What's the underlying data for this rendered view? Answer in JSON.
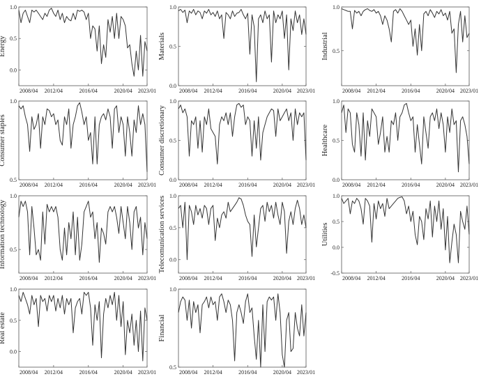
{
  "chart_data": [
    {
      "type": "line",
      "ylabel": "Energy",
      "ylim": [
        -0.25,
        1.0
      ],
      "yticks": [
        "1.0",
        "0.5",
        "0.0"
      ],
      "ytick_values": [
        1.0,
        0.5,
        0.0
      ],
      "xticks": [
        "2008/04",
        "2012/04",
        "2016/04",
        "2020/04",
        "2023/01"
      ],
      "x_start": "2008/04",
      "x_end": "2023/01",
      "x_step": "quarterly",
      "values": [
        0.95,
        0.75,
        0.9,
        0.95,
        0.85,
        0.75,
        0.95,
        0.92,
        0.95,
        0.9,
        0.85,
        0.8,
        0.9,
        0.85,
        0.95,
        0.98,
        0.9,
        0.85,
        0.95,
        0.8,
        0.9,
        0.75,
        0.85,
        0.8,
        0.78,
        0.9,
        0.8,
        0.95,
        0.93,
        0.95,
        0.92,
        0.8,
        0.9,
        0.5,
        0.7,
        0.65,
        0.3,
        0.7,
        0.1,
        0.4,
        0.2,
        0.8,
        0.6,
        0.85,
        0.5,
        0.9,
        0.5,
        0.85,
        0.8,
        0.7,
        0.35,
        0.4,
        0.1,
        -0.1,
        0.3,
        0.0,
        0.55,
        -0.1,
        0.45,
        0.3
      ]
    },
    {
      "type": "line",
      "ylabel": "Materials",
      "ylim": [
        0.0,
        1.0
      ],
      "yticks": [
        "1.0",
        "0.5",
        "0.0"
      ],
      "ytick_values": [
        1.0,
        0.5,
        0.0
      ],
      "xticks": [
        "2008/04",
        "2012/04",
        "2016/04",
        "2020/04",
        "2023/01"
      ],
      "x_start": "2008/04",
      "x_end": "2023/01",
      "x_step": "quarterly",
      "values": [
        0.95,
        0.97,
        0.93,
        0.96,
        0.8,
        0.95,
        0.92,
        0.97,
        0.9,
        0.95,
        0.93,
        0.85,
        0.95,
        0.92,
        0.97,
        0.9,
        0.93,
        0.88,
        0.95,
        0.85,
        0.9,
        0.6,
        0.93,
        0.9,
        0.85,
        0.95,
        0.88,
        0.92,
        0.93,
        0.97,
        0.9,
        0.85,
        0.92,
        0.4,
        0.9,
        0.75,
        0.05,
        0.85,
        0.9,
        0.8,
        0.95,
        0.85,
        0.9,
        0.3,
        0.95,
        0.8,
        0.9,
        0.85,
        0.95,
        0.6,
        0.9,
        0.2,
        0.85,
        0.7,
        0.95,
        0.8,
        0.9,
        0.65,
        0.85,
        0.65
      ]
    },
    {
      "type": "line",
      "ylabel": "Industrial",
      "ylim": [
        0.1,
        1.0
      ],
      "yticks": [
        "1.0",
        "0.5"
      ],
      "ytick_values": [
        1.0,
        0.5
      ],
      "xticks": [
        "2008/04",
        "2012/04",
        "2016/04",
        "2020/04",
        "2023/01"
      ],
      "x_start": "2008/04",
      "x_end": "2023/01",
      "x_step": "quarterly",
      "values": [
        0.98,
        0.97,
        0.96,
        0.95,
        0.95,
        0.75,
        0.96,
        0.93,
        0.95,
        0.9,
        0.95,
        0.97,
        0.98,
        0.96,
        0.95,
        0.97,
        0.93,
        0.95,
        0.9,
        0.8,
        0.9,
        0.85,
        0.75,
        0.6,
        0.95,
        0.97,
        0.93,
        0.98,
        0.95,
        0.9,
        0.85,
        0.8,
        0.85,
        0.55,
        0.75,
        0.45,
        0.8,
        0.5,
        0.92,
        0.95,
        0.9,
        0.97,
        0.93,
        0.88,
        0.95,
        0.92,
        0.97,
        0.9,
        0.93,
        0.85,
        0.95,
        0.7,
        0.75,
        0.25,
        0.8,
        0.95,
        0.6,
        0.9,
        0.65,
        0.7
      ]
    },
    {
      "type": "line",
      "ylabel": "Consumer staples",
      "ylim": [
        0.5,
        1.0
      ],
      "yticks": [
        "1.0",
        "0.5"
      ],
      "ytick_values": [
        1.0,
        0.5
      ],
      "xticks": [
        "2008/04",
        "2012/04",
        "2016/04",
        "2020/04",
        "2023/01"
      ],
      "x_start": "2008/04",
      "x_end": "2023/01",
      "x_step": "quarterly",
      "values": [
        0.97,
        0.95,
        0.97,
        0.9,
        0.85,
        0.68,
        0.9,
        0.82,
        0.85,
        0.92,
        0.7,
        0.9,
        0.85,
        0.95,
        0.94,
        0.9,
        0.92,
        0.85,
        0.88,
        0.75,
        0.72,
        0.9,
        0.85,
        0.95,
        0.7,
        0.85,
        0.9,
        0.97,
        0.99,
        0.93,
        0.85,
        0.9,
        0.75,
        0.8,
        0.6,
        0.9,
        0.6,
        0.85,
        0.9,
        0.92,
        0.88,
        0.95,
        0.9,
        0.7,
        0.95,
        0.97,
        0.8,
        0.9,
        0.85,
        0.65,
        0.9,
        0.8,
        0.65,
        0.88,
        0.8,
        0.97,
        0.85,
        0.92,
        0.85,
        0.55
      ]
    },
    {
      "type": "line",
      "ylabel": "Consumer discretionary",
      "ylim": [
        0.0,
        1.0
      ],
      "yticks": [
        "1.0",
        "0.5",
        "0.0"
      ],
      "ytick_values": [
        1.0,
        0.5,
        0.0
      ],
      "xticks": [
        "2008/04",
        "2012/04",
        "2016/04",
        "2020/04",
        "2023/01"
      ],
      "x_start": "2008/04",
      "x_end": "2023/01",
      "x_step": "quarterly",
      "values": [
        0.9,
        0.95,
        0.85,
        0.9,
        0.8,
        0.3,
        0.75,
        0.7,
        0.8,
        0.4,
        0.75,
        0.35,
        0.8,
        0.7,
        0.9,
        0.65,
        0.6,
        0.55,
        0.2,
        0.7,
        0.8,
        0.75,
        0.85,
        0.7,
        0.85,
        0.55,
        0.8,
        0.95,
        0.97,
        0.92,
        0.95,
        0.7,
        0.8,
        0.75,
        0.3,
        0.75,
        0.4,
        0.8,
        0.25,
        0.6,
        0.7,
        0.8,
        0.85,
        0.9,
        0.88,
        0.55,
        0.9,
        0.75,
        0.8,
        0.85,
        0.9,
        0.75,
        0.85,
        0.5,
        0.9,
        0.7,
        0.85,
        0.8,
        0.85,
        0.25
      ]
    },
    {
      "type": "line",
      "ylabel": "Healthcare",
      "ylim": [
        0.0,
        1.0
      ],
      "yticks": [
        "1.0",
        "0.5",
        "0.0"
      ],
      "ytick_values": [
        1.0,
        0.5,
        0.0
      ],
      "xticks": [
        "2008/04",
        "2012/04",
        "2016/04",
        "2020/04",
        "2023/01"
      ],
      "x_start": "2008/04",
      "x_end": "2023/01",
      "x_step": "quarterly",
      "values": [
        0.85,
        0.95,
        0.6,
        0.9,
        0.85,
        0.45,
        0.35,
        0.85,
        0.7,
        0.3,
        0.85,
        0.25,
        0.75,
        0.55,
        0.9,
        0.85,
        0.8,
        0.45,
        0.6,
        0.8,
        0.35,
        0.55,
        0.35,
        0.75,
        0.7,
        0.85,
        0.5,
        0.8,
        0.85,
        0.95,
        0.97,
        0.85,
        0.75,
        0.8,
        0.35,
        0.7,
        0.45,
        0.2,
        0.8,
        0.6,
        0.4,
        0.8,
        0.85,
        0.75,
        0.9,
        0.65,
        0.85,
        0.7,
        0.35,
        0.8,
        0.6,
        0.9,
        0.7,
        0.75,
        0.1,
        0.75,
        0.8,
        0.7,
        0.55,
        0.2
      ]
    },
    {
      "type": "line",
      "ylabel": "Information technology",
      "ylim": [
        0.28,
        1.0
      ],
      "yticks": [
        "1.0",
        "0.5"
      ],
      "ytick_values": [
        1.0,
        0.5
      ],
      "xticks": [
        "2008/04",
        "2012/04",
        "2016/04",
        "2020/04",
        "2023/01"
      ],
      "x_start": "2008/04",
      "x_end": "2023/01",
      "x_step": "quarterly",
      "values": [
        0.8,
        0.95,
        0.9,
        0.95,
        0.85,
        0.45,
        0.9,
        0.7,
        0.45,
        0.5,
        0.4,
        0.85,
        0.55,
        0.92,
        0.85,
        0.9,
        0.85,
        0.9,
        0.8,
        0.5,
        0.4,
        0.7,
        0.45,
        0.75,
        0.6,
        0.85,
        0.45,
        0.8,
        0.4,
        0.55,
        0.85,
        0.9,
        0.95,
        0.8,
        0.85,
        0.6,
        0.75,
        0.38,
        0.7,
        0.65,
        0.55,
        0.85,
        0.9,
        0.85,
        0.9,
        0.8,
        0.65,
        0.9,
        0.75,
        0.6,
        0.9,
        0.75,
        0.5,
        0.85,
        0.9,
        0.7,
        0.8,
        0.45,
        0.75,
        0.6
      ]
    },
    {
      "type": "line",
      "ylabel": "Telecomunication services",
      "ylim": [
        -0.21,
        1.0
      ],
      "yticks": [
        "1.0",
        "0.5",
        "0.0"
      ],
      "ytick_values": [
        1.0,
        0.5,
        0.0
      ],
      "xticks": [
        "2008/04",
        "2012/04",
        "2016/04",
        "2020/04",
        "2023/01"
      ],
      "x_start": "2008/04",
      "x_end": "2023/01",
      "x_step": "quarterly",
      "values": [
        0.8,
        0.85,
        0.5,
        0.9,
        0.0,
        0.85,
        0.75,
        0.55,
        0.85,
        0.7,
        0.8,
        0.65,
        0.85,
        0.8,
        0.55,
        0.8,
        0.85,
        0.3,
        0.65,
        0.5,
        0.7,
        0.75,
        0.65,
        0.9,
        0.75,
        0.8,
        0.85,
        0.9,
        0.97,
        0.95,
        0.85,
        0.7,
        0.6,
        0.55,
        0.05,
        0.7,
        0.2,
        0.5,
        0.8,
        0.85,
        0.6,
        0.9,
        0.75,
        0.85,
        0.65,
        0.9,
        0.7,
        0.55,
        0.9,
        0.75,
        0.1,
        0.6,
        0.75,
        0.55,
        0.8,
        0.93,
        0.8,
        0.55,
        0.7,
        0.5
      ]
    },
    {
      "type": "line",
      "ylabel": "Utilities",
      "ylim": [
        -0.5,
        1.0
      ],
      "yticks": [
        "1.0",
        "0.5",
        "0.0",
        "-0.5"
      ],
      "ytick_values": [
        1.0,
        0.5,
        0.0,
        -0.5
      ],
      "xticks": [
        "2008/04",
        "2012/04",
        "2016/04",
        "2020/04",
        "2023/01"
      ],
      "x_start": "2008/04",
      "x_end": "2023/01",
      "x_step": "quarterly",
      "values": [
        0.95,
        0.85,
        0.9,
        0.95,
        0.65,
        0.9,
        0.85,
        0.95,
        0.9,
        0.75,
        0.45,
        0.95,
        0.9,
        0.8,
        0.1,
        0.85,
        0.55,
        0.9,
        0.75,
        0.85,
        0.6,
        0.95,
        0.75,
        0.8,
        0.85,
        0.9,
        0.95,
        0.97,
        0.98,
        0.9,
        0.65,
        0.8,
        0.5,
        0.7,
        0.25,
        0.05,
        0.6,
        0.5,
        0.15,
        0.75,
        0.55,
        0.9,
        0.2,
        0.8,
        0.5,
        0.9,
        0.35,
        0.75,
        -0.05,
        0.6,
        -0.3,
        0.1,
        0.45,
        0.25,
        -0.3,
        0.7,
        0.5,
        0.35,
        0.8,
        0.25
      ]
    },
    {
      "type": "line",
      "ylabel": "Real estate",
      "ylim": [
        -0.25,
        1.0
      ],
      "yticks": [
        "1.0",
        "0.5",
        "0.0"
      ],
      "ytick_values": [
        1.0,
        0.5,
        0.0
      ],
      "xticks": [
        "2008/04",
        "2012/04",
        "2016/04",
        "2020/04",
        "2023/01"
      ],
      "x_start": "2008/04",
      "x_end": "2023/01",
      "x_step": "quarterly",
      "values": [
        0.9,
        0.8,
        0.95,
        0.85,
        0.75,
        0.6,
        0.9,
        0.75,
        0.85,
        0.4,
        0.9,
        0.8,
        0.85,
        0.65,
        0.9,
        0.8,
        0.9,
        0.65,
        0.85,
        0.7,
        0.9,
        0.6,
        0.85,
        0.75,
        0.85,
        0.3,
        0.7,
        0.8,
        0.85,
        0.6,
        0.95,
        0.9,
        0.95,
        0.7,
        0.1,
        0.75,
        0.5,
        0.8,
        -0.1,
        0.6,
        0.85,
        0.7,
        0.9,
        0.75,
        0.95,
        0.5,
        0.9,
        0.4,
        0.8,
        -0.05,
        0.5,
        0.3,
        0.6,
        0.1,
        0.5,
        0.0,
        0.65,
        -0.15,
        0.7,
        0.5
      ]
    },
    {
      "type": "line",
      "ylabel": "Financial",
      "ylim": [
        0.5,
        1.0
      ],
      "yticks": [
        "1.0",
        "0.5"
      ],
      "ytick_values": [
        1.0,
        0.5
      ],
      "xticks": [
        "2008/04",
        "2012/04",
        "2016/04",
        "2020/04",
        "2023/01"
      ],
      "x_start": "2008/04",
      "x_end": "2023/01",
      "x_step": "quarterly",
      "values": [
        0.85,
        0.92,
        0.95,
        0.93,
        0.8,
        0.93,
        0.75,
        0.92,
        0.85,
        0.9,
        0.72,
        0.9,
        0.92,
        0.95,
        0.88,
        0.95,
        0.9,
        0.92,
        0.8,
        0.95,
        0.97,
        0.92,
        0.85,
        0.93,
        0.9,
        0.8,
        0.54,
        0.85,
        0.9,
        0.85,
        0.78,
        0.92,
        0.97,
        0.85,
        0.88,
        0.7,
        0.55,
        0.8,
        0.5,
        0.9,
        0.6,
        0.92,
        0.95,
        0.93,
        0.95,
        0.8,
        0.97,
        0.85,
        0.58,
        0.5,
        0.8,
        0.85,
        0.6,
        0.62,
        0.85,
        0.75,
        0.7,
        0.9,
        0.7,
        0.85
      ]
    }
  ],
  "colors": {
    "line": "#333333",
    "axis": "#555555",
    "background": "#ffffff"
  }
}
